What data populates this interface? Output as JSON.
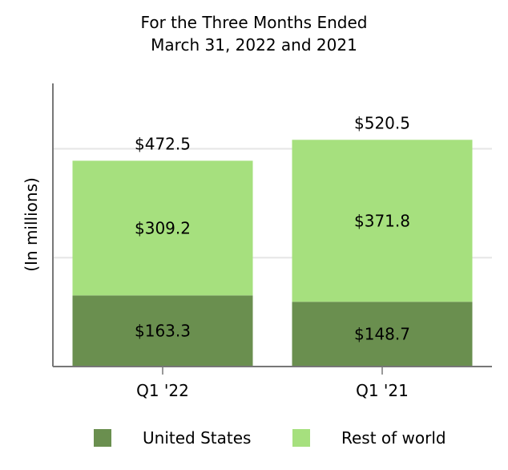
{
  "chart_data": {
    "type": "bar",
    "stacked": true,
    "title_lines": [
      "For the Three Months Ended",
      "March 31, 2022 and 2021"
    ],
    "xlabel": "",
    "ylabel": "(In millions)",
    "categories": [
      "Q1 '22",
      "Q1 '21"
    ],
    "series": [
      {
        "name": "United States",
        "values": [
          163.3,
          148.7
        ],
        "labels": [
          "$163.3",
          "$148.7"
        ],
        "color": "#6a8f4f"
      },
      {
        "name": "Rest of world",
        "values": [
          309.2,
          371.8
        ],
        "labels": [
          "$309.2",
          "$371.8"
        ],
        "color": "#a6e07e"
      }
    ],
    "totals": [
      472.5,
      520.5
    ],
    "total_labels": [
      "$472.5",
      "$520.5"
    ],
    "ylim": [
      0,
      650
    ],
    "gridlines": [
      250,
      500
    ],
    "grid": true,
    "legend": "bottom"
  }
}
